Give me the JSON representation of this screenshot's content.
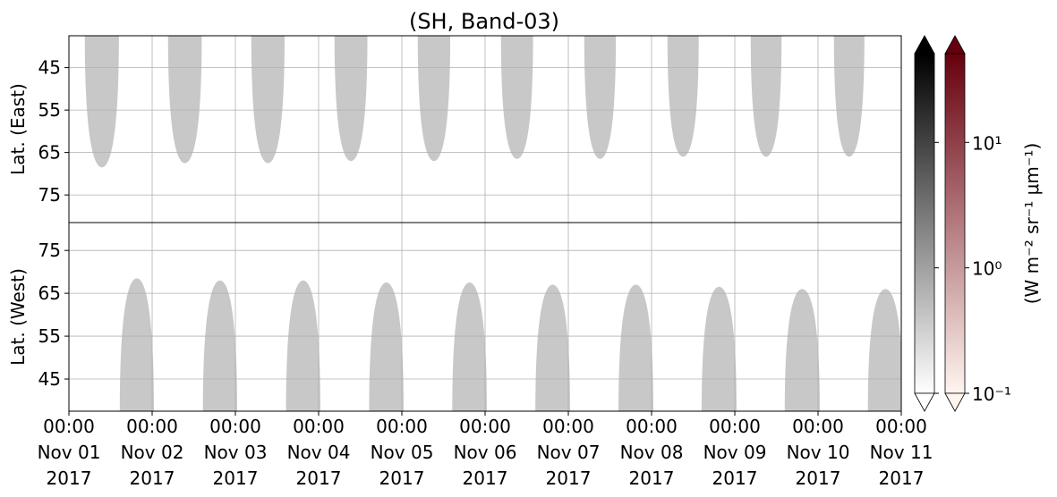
{
  "chart_data": {
    "type": "daylight-map",
    "title": "(SH, Band-03)",
    "xlim": [
      "2017-11-01T00:00",
      "2017-11-11T00:00"
    ],
    "xticks": [
      {
        "value": "2017-11-01T00:00",
        "label": [
          "00:00",
          "Nov 01",
          "2017"
        ]
      },
      {
        "value": "2017-11-02T00:00",
        "label": [
          "00:00",
          "Nov 02",
          "2017"
        ]
      },
      {
        "value": "2017-11-03T00:00",
        "label": [
          "00:00",
          "Nov 03",
          "2017"
        ]
      },
      {
        "value": "2017-11-04T00:00",
        "label": [
          "00:00",
          "Nov 04",
          "2017"
        ]
      },
      {
        "value": "2017-11-05T00:00",
        "label": [
          "00:00",
          "Nov 05",
          "2017"
        ]
      },
      {
        "value": "2017-11-06T00:00",
        "label": [
          "00:00",
          "Nov 06",
          "2017"
        ]
      },
      {
        "value": "2017-11-07T00:00",
        "label": [
          "00:00",
          "Nov 07",
          "2017"
        ]
      },
      {
        "value": "2017-11-08T00:00",
        "label": [
          "00:00",
          "Nov 08",
          "2017"
        ]
      },
      {
        "value": "2017-11-09T00:00",
        "label": [
          "00:00",
          "Nov 09",
          "2017"
        ]
      },
      {
        "value": "2017-11-10T00:00",
        "label": [
          "00:00",
          "Nov 10",
          "2017"
        ]
      },
      {
        "value": "2017-11-11T00:00",
        "label": [
          "00:00",
          "Nov 11",
          "2017"
        ]
      }
    ],
    "grid": true,
    "panels": [
      {
        "ylabel": "Lat. (East)",
        "ylim": [
          81.5,
          37.5
        ],
        "yticks": [
          45,
          55,
          65,
          75
        ],
        "color": "#c8c8c8",
        "start": [
          "2017-11-01T04:35",
          "2017-11-02T04:35",
          "2017-11-03T04:35",
          "2017-11-04T04:35",
          "2017-11-05T04:35",
          "2017-11-06T04:35",
          "2017-11-07T04:35",
          "2017-11-08T04:35",
          "2017-11-09T04:35",
          "2017-11-10T04:35"
        ],
        "end": [
          "2017-11-01T14:25",
          "2017-11-02T14:18",
          "2017-11-03T14:11",
          "2017-11-04T14:04",
          "2017-11-05T13:57",
          "2017-11-06T13:50",
          "2017-11-07T13:43",
          "2017-11-08T13:36",
          "2017-11-09T13:29",
          "2017-11-10T13:22"
        ],
        "peak": [
          68.5,
          67.5,
          67.5,
          67,
          67,
          66.5,
          66.5,
          66,
          66,
          66
        ]
      },
      {
        "ylabel": "Lat. (West)",
        "ylim": [
          37.5,
          81.5
        ],
        "yticks": [
          45,
          55,
          65,
          75
        ],
        "color": "#c8c8c8",
        "start": [
          "2017-11-01T14:40",
          "2017-11-02T14:38",
          "2017-11-03T14:36",
          "2017-11-04T14:34",
          "2017-11-05T14:32",
          "2017-11-06T14:30",
          "2017-11-07T14:28",
          "2017-11-08T14:26",
          "2017-11-09T14:24",
          "2017-11-10T14:22"
        ],
        "end": [
          "2017-11-02T00:30",
          "2017-11-03T00:30",
          "2017-11-04T00:30",
          "2017-11-05T00:30",
          "2017-11-06T00:30",
          "2017-11-07T00:30",
          "2017-11-08T00:30",
          "2017-11-09T00:30",
          "2017-11-10T00:30",
          "2017-11-11T00:30"
        ],
        "peak": [
          68.5,
          68,
          68,
          67.5,
          67.5,
          67,
          67,
          66.5,
          66,
          66
        ]
      }
    ],
    "colorbar": {
      "label": "(W m⁻² sr⁻¹ μm⁻¹)",
      "log": true,
      "lim": [
        0.1,
        51
      ],
      "ticks": [
        {
          "value": 0.1,
          "label": "10⁻¹"
        },
        {
          "value": 1,
          "label": "10⁰"
        },
        {
          "value": 10,
          "label": "10¹"
        }
      ],
      "colors": [
        [
          "#ffffff",
          "#000000"
        ],
        [
          "#fff5f0",
          "#67000d"
        ]
      ]
    }
  }
}
